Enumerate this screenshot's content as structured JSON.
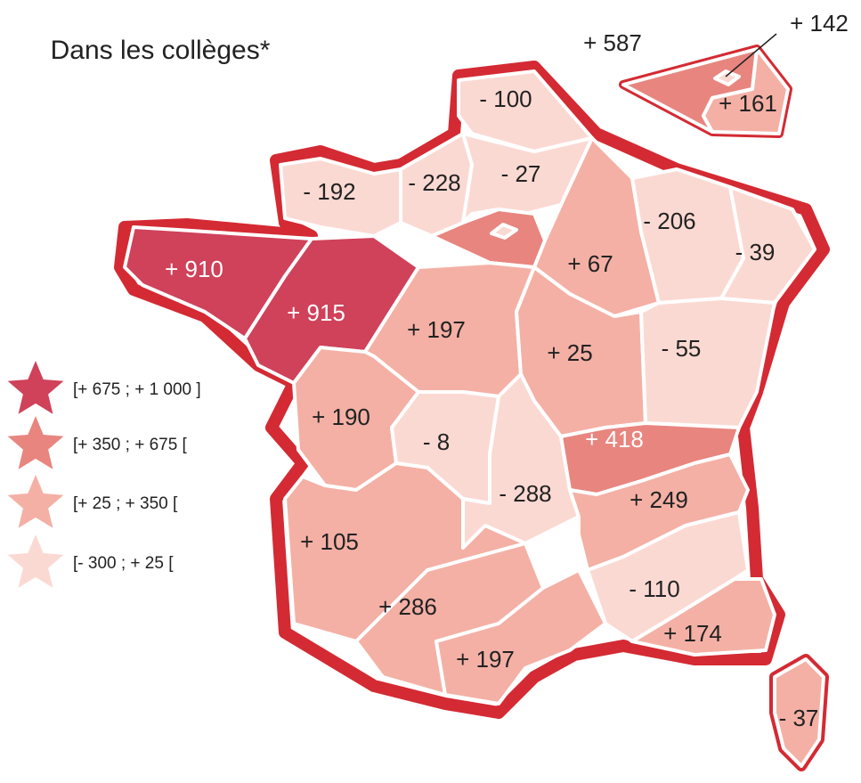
{
  "title": "Dans les collèges*",
  "regions": [
    {
      "label": "- 100"
    },
    {
      "label": "- 192"
    },
    {
      "label": "- 228"
    },
    {
      "label": "- 27"
    },
    {
      "label": "+ 910"
    },
    {
      "label": "+ 915"
    },
    {
      "label": "+ 197"
    },
    {
      "label": "+ 67"
    },
    {
      "label": "- 206"
    },
    {
      "label": "- 39"
    },
    {
      "label": "+ 25"
    },
    {
      "label": "- 55"
    },
    {
      "label": "+ 190"
    },
    {
      "label": "- 8"
    },
    {
      "label": "- 288"
    },
    {
      "label": "+ 418"
    },
    {
      "label": "+ 249"
    },
    {
      "label": "+ 105"
    },
    {
      "label": "+ 286"
    },
    {
      "label": "+ 197"
    },
    {
      "label": "- 110"
    },
    {
      "label": "+ 174"
    },
    {
      "label": "- 37"
    },
    {
      "label": "+ 587"
    },
    {
      "label": "+ 142"
    },
    {
      "label": "+ 161"
    }
  ],
  "legend": [
    {
      "label": "[+ 675 ; + 1 000 ]",
      "color": "#d0415a"
    },
    {
      "label": "[+ 350 ; + 675 [",
      "color": "#e8857f"
    },
    {
      "label": "[+ 25 ; + 350 [",
      "color": "#f4b0a5"
    },
    {
      "label": "[- 300 ; + 25 [",
      "color": "#fbd9d3"
    }
  ]
}
